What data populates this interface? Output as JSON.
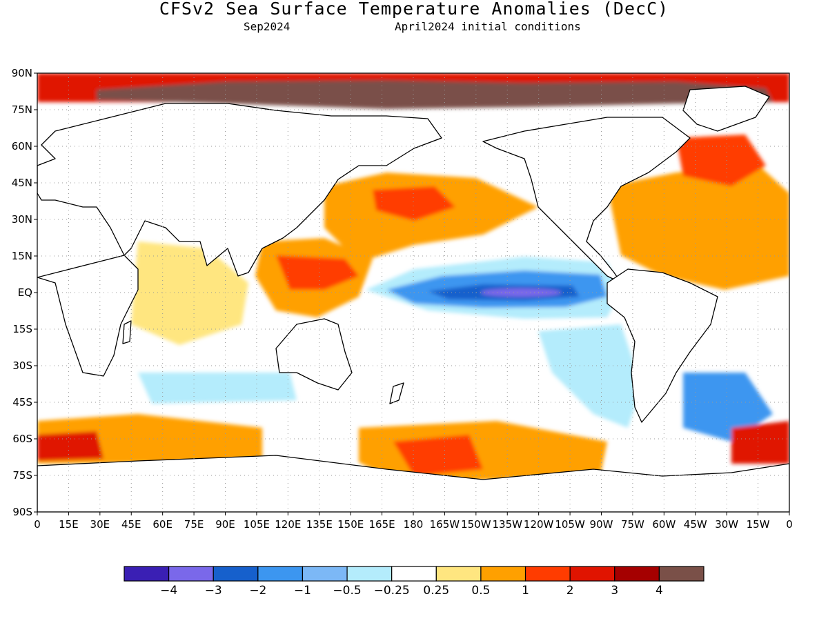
{
  "title": "CFSv2 Sea Surface Temperature Anomalies (DecC)",
  "subtitle_left": "Sep2024",
  "subtitle_right": "April2024 initial conditions",
  "lat_labels": [
    "90N",
    "75N",
    "60N",
    "45N",
    "30N",
    "15N",
    "EQ",
    "15S",
    "30S",
    "45S",
    "60S",
    "75S",
    "90S"
  ],
  "lon_labels": [
    "0",
    "15E",
    "30E",
    "45E",
    "60E",
    "75E",
    "90E",
    "105E",
    "120E",
    "135E",
    "150E",
    "165E",
    "180",
    "165W",
    "150W",
    "135W",
    "120W",
    "105W",
    "90W",
    "75W",
    "60W",
    "45W",
    "30W",
    "15W",
    "0"
  ],
  "colorbar": {
    "labels": [
      "−4",
      "−3",
      "−2",
      "−1",
      "−0.5",
      "−0.25",
      "0.25",
      "0.5",
      "1",
      "2",
      "3",
      "4"
    ],
    "colors": [
      "#3a1fb4",
      "#7a68ea",
      "#1660cc",
      "#3c96f0",
      "#7cb8f6",
      "#b4ecfc",
      "#ffffff",
      "#ffe680",
      "#ffa000",
      "#ff3c00",
      "#e01400",
      "#a50000",
      "#7a5048"
    ]
  },
  "colors": {
    "land": "#ffffff",
    "coast": "#000000",
    "grid": "#999999"
  }
}
